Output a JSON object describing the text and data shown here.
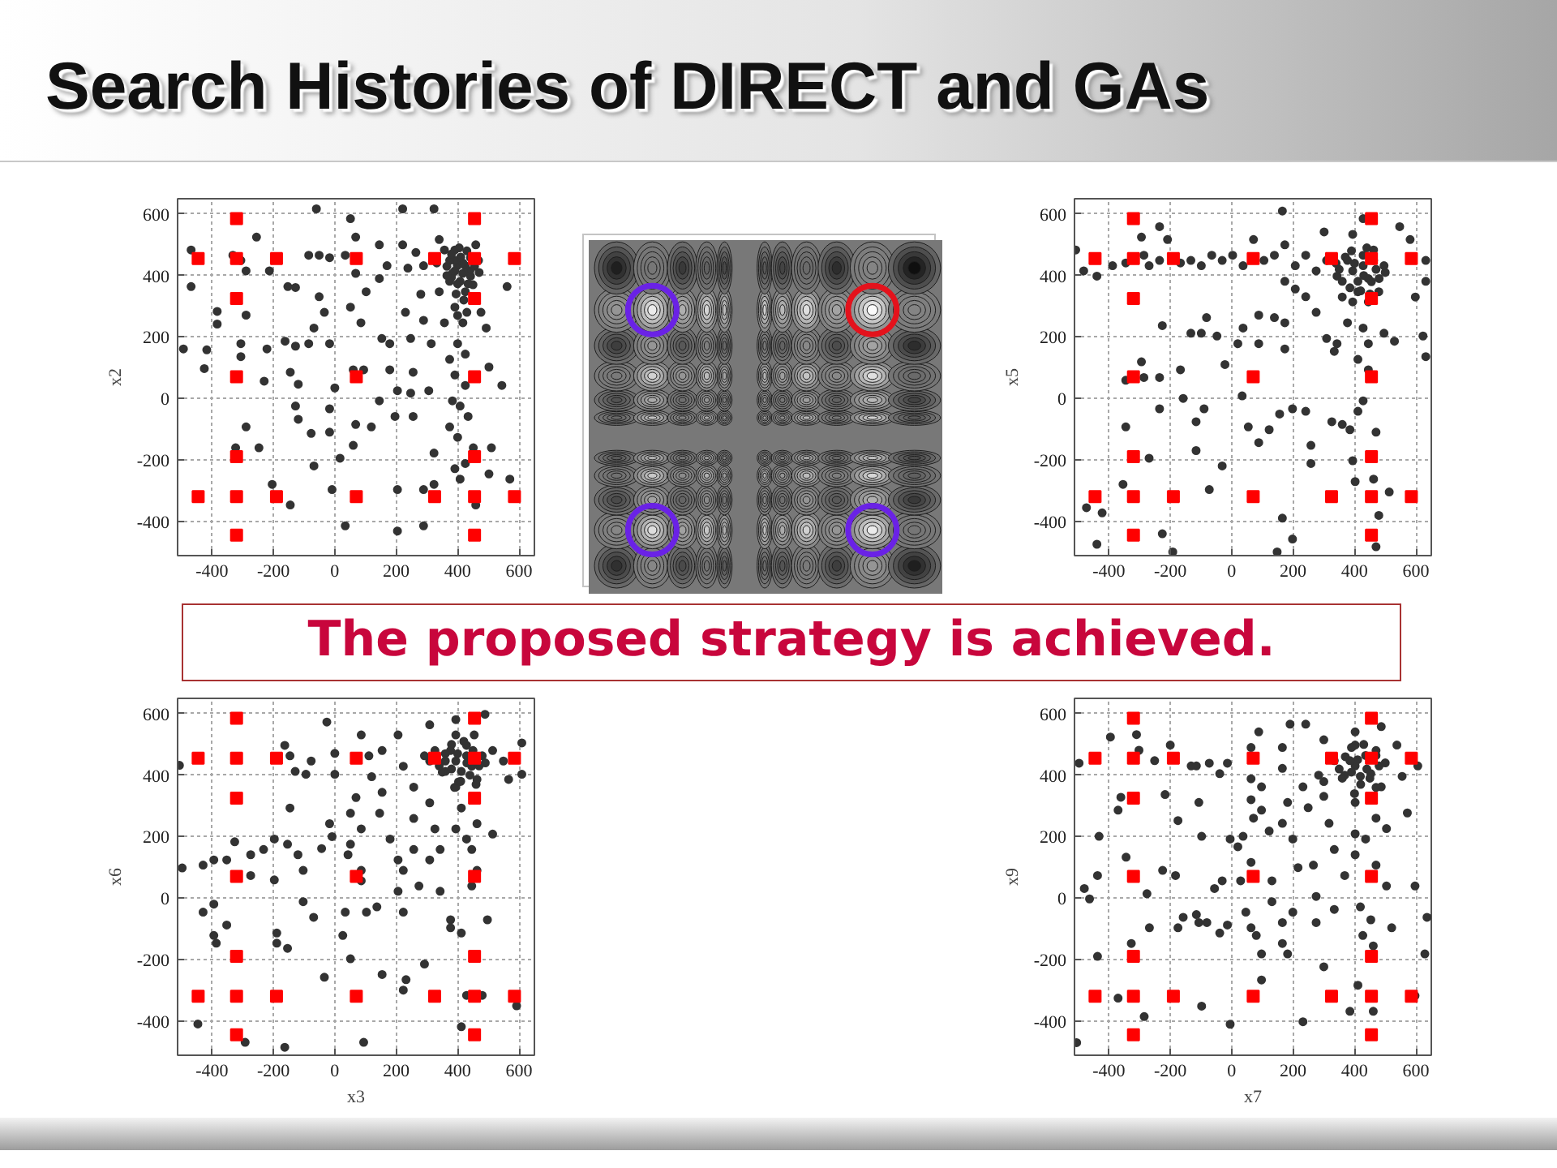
{
  "chart_data": [
    {
      "type": "scatter",
      "title": "Search Histories of DIRECT and GAs",
      "annotations": [
        "The proposed strategy is achieved."
      ],
      "ylabel": "x2",
      "xlim": [
        -512,
        650
      ],
      "ylim": [
        -512,
        650
      ],
      "xticks": [
        -400,
        -200,
        0,
        200,
        400,
        600
      ],
      "yticks": [
        -400,
        -200,
        0,
        200,
        400,
        600
      ],
      "grid": true,
      "series": [
        {
          "color": "#333333",
          "marker": "circle",
          "x": [
            -468,
            -468,
            -493,
            -417,
            -425,
            -383,
            -383,
            -332,
            -306,
            -289,
            -289,
            -306,
            -306,
            -255,
            -213,
            -221,
            -230,
            -289,
            -323,
            -247,
            -204,
            -145,
            -153,
            -128,
            -162,
            -128,
            -145,
            -119,
            -128,
            -119,
            -77,
            -68,
            -60,
            -85,
            -51,
            -17,
            -51,
            -68,
            -34,
            -85,
            -17,
            0,
            -17,
            -17,
            -9,
            17,
            34,
            51,
            68,
            34,
            68,
            51,
            85,
            102,
            60,
            94,
            68,
            60,
            119,
            145,
            145,
            145,
            170,
            153,
            179,
            179,
            204,
            196,
            204,
            204,
            221,
            221,
            238,
            230,
            247,
            255,
            247,
            255,
            289,
            289,
            289,
            264,
            280,
            289,
            323,
            314,
            306,
            323,
            323,
            340,
            340,
            357,
            374,
            374,
            383,
            391,
            408,
            391,
            391,
            425,
            408,
            442,
            374,
            425,
            391,
            417,
            400,
            425,
            391,
            425,
            408,
            434,
            400,
            451,
            459,
            468,
            476,
            493,
            502,
            510,
            502,
            459,
            544,
            561,
            570,
            425,
            357,
            332,
            442,
            399,
            417,
            383,
            434,
            400,
            417,
            391,
            374,
            365,
            380,
            405,
            430,
            455,
            450,
            420,
            395,
            380,
            410,
            440,
            365,
            470,
            400,
            430
          ],
          "values": [
            483,
            364,
            161,
            158,
            97,
            283,
            242,
            466,
            449,
            415,
            271,
            178,
            136,
            525,
            415,
            161,
            56,
            -93,
            -161,
            -161,
            -280,
            -347,
            364,
            361,
            186,
            170,
            85,
            46,
            -25,
            -68,
            -114,
            -220,
            617,
            466,
            466,
            458,
            331,
            229,
            280,
            178,
            178,
            34,
            -34,
            -110,
            -297,
            -195,
            -415,
            585,
            525,
            466,
            407,
            297,
            246,
            347,
            93,
            93,
            -85,
            -153,
            -93,
            -8,
            390,
            500,
            432,
            195,
            178,
            93,
            25,
            -59,
            -297,
            -432,
            500,
            617,
            424,
            280,
            195,
            85,
            17,
            -59,
            -297,
            -415,
            432,
            475,
            339,
            254,
            617,
            178,
            25,
            -178,
            -280,
            517,
            347,
            246,
            127,
            -93,
            -8,
            -229,
            -263,
            483,
            415,
            432,
            381,
            398,
            381,
            347,
            297,
            246,
            178,
            144,
            76,
            42,
            -25,
            -59,
            -127,
            -161,
            500,
            449,
            280,
            229,
            102,
            -161,
            -246,
            -347,
            42,
            364,
            -263,
            -212,
            483,
            441,
            458,
            432,
            441,
            407,
            373,
            373,
            407,
            449,
            449,
            430,
            470,
            490,
            480,
            430,
            370,
            320,
            340,
            395,
            460,
            415,
            400,
            410,
            270,
            280
          ]
        },
        {
          "color": "#ff0000",
          "marker": "square",
          "x": [
            -320,
            455,
            -445,
            -320,
            -190,
            70,
            325,
            455,
            585,
            -320,
            455,
            -320,
            70,
            455,
            -320,
            455,
            -445,
            -320,
            -190,
            70,
            325,
            455,
            585,
            -320,
            455
          ],
          "values": [
            585,
            585,
            455,
            455,
            455,
            455,
            455,
            455,
            455,
            325,
            325,
            70,
            70,
            70,
            -190,
            -190,
            -320,
            -320,
            -320,
            -320,
            -320,
            -320,
            -320,
            -445,
            -445
          ]
        }
      ]
    },
    {
      "type": "scatter",
      "ylabel": "x5",
      "xlim": [
        -512,
        650
      ],
      "ylim": [
        -512,
        650
      ],
      "xticks": [
        -400,
        -200,
        0,
        200,
        400,
        600
      ],
      "yticks": [
        -400,
        -200,
        0,
        200,
        400,
        600
      ],
      "grid": true,
      "series": [
        {
          "color": "#333333",
          "marker": "circle",
          "x": [
            -508,
            -482,
            -439,
            -388,
            -345,
            -294,
            -286,
            -269,
            -235,
            -235,
            -209,
            -167,
            -133,
            -99,
            -65,
            -31,
            3,
            37,
            71,
            105,
            139,
            165,
            173,
            207,
            241,
            275,
            309,
            301,
            394,
            428,
            547,
            581,
            632,
            632,
            598,
            623,
            632,
            530,
            496,
            445,
            411,
            428,
            377,
            343,
            309,
            334,
            275,
            241,
            207,
            173,
            173,
            173,
            139,
            88,
            88,
            37,
            20,
            -22,
            -48,
            -82,
            -99,
            -133,
            -226,
            -167,
            -158,
            -235,
            -235,
            -286,
            -294,
            -345,
            -345,
            -269,
            -354,
            -473,
            -422,
            -439,
            -226,
            -192,
            -73,
            -31,
            -90,
            -116,
            -116,
            34,
            54,
            88,
            122,
            156,
            198,
            241,
            258,
            258,
            165,
            148,
            198,
            326,
            360,
            385,
            411,
            394,
            402,
            462,
            479,
            470,
            513,
            470,
            445,
            428,
            394,
            428,
            411,
            445,
            377,
            462,
            360,
            411,
            479,
            343,
            428,
            496,
            394,
            445,
            462,
            350,
            370,
            390,
            440,
            470,
            455,
            420,
            385,
            400,
            430,
            480,
            340,
            500,
            360,
            450
          ],
          "values": [
            483,
            415,
            398,
            432,
            441,
            525,
            466,
            432,
            559,
            449,
            517,
            441,
            449,
            432,
            466,
            449,
            466,
            432,
            517,
            449,
            466,
            610,
            500,
            432,
            466,
            415,
            449,
            542,
            534,
            585,
            559,
            517,
            449,
            381,
            330,
            203,
            136,
            186,
            212,
            178,
            127,
            229,
            246,
            178,
            195,
            153,
            280,
            331,
            356,
            381,
            246,
            161,
            263,
            271,
            178,
            229,
            178,
            110,
            203,
            263,
            212,
            212,
            237,
            93,
            0,
            68,
            -34,
            68,
            119,
            59,
            -93,
            -195,
            -280,
            -356,
            -373,
            -475,
            -441,
            -500,
            -297,
            -220,
            -34,
            -76,
            -170,
            8,
            -93,
            -144,
            -102,
            -51,
            -34,
            -42,
            -153,
            -212,
            -390,
            -500,
            -458,
            -76,
            -85,
            -102,
            -42,
            -203,
            -271,
            -263,
            -381,
            -483,
            -305,
            -110,
            93,
            -8,
            415,
            432,
            381,
            390,
            449,
            449,
            381,
            347,
            347,
            398,
            466,
            432,
            314,
            314,
            483,
            420,
            460,
            480,
            490,
            420,
            380,
            350,
            360,
            440,
            400,
            390,
            440,
            410,
            330,
            340
          ]
        },
        {
          "color": "#ff0000",
          "marker": "square",
          "x": [
            -320,
            455,
            -445,
            -320,
            -190,
            70,
            325,
            455,
            585,
            -320,
            455,
            -320,
            70,
            455,
            -320,
            455,
            -445,
            -320,
            -190,
            70,
            325,
            455,
            585,
            -320,
            455
          ],
          "values": [
            585,
            585,
            455,
            455,
            455,
            455,
            455,
            455,
            455,
            325,
            325,
            70,
            70,
            70,
            -190,
            -190,
            -320,
            -320,
            -320,
            -320,
            -320,
            -320,
            -320,
            -445,
            -445
          ]
        }
      ]
    },
    {
      "type": "scatter",
      "xlabel": "x3",
      "ylabel": "x6",
      "xlim": [
        -512,
        650
      ],
      "ylim": [
        -512,
        650
      ],
      "xticks": [
        -400,
        -200,
        0,
        200,
        400,
        600
      ],
      "yticks": [
        -400,
        -200,
        0,
        200,
        400,
        600
      ],
      "grid": true,
      "series": [
        {
          "color": "#333333",
          "marker": "circle",
          "x": [
            -506,
            -497,
            -429,
            -394,
            -352,
            -326,
            -274,
            -274,
            -429,
            -394,
            -394,
            -386,
            -352,
            -446,
            -292,
            -163,
            -232,
            -197,
            -197,
            -154,
            -146,
            -189,
            -189,
            -154,
            -120,
            -103,
            -103,
            -69,
            -34,
            -43,
            -17,
            -9,
            -129,
            -146,
            -163,
            -94,
            -77,
            -26,
            0,
            0,
            34,
            26,
            51,
            94,
            51,
            69,
            86,
            51,
            43,
            86,
            86,
            103,
            137,
            154,
            120,
            111,
            86,
            154,
            154,
            146,
            180,
            206,
            223,
            206,
            223,
            232,
            223,
            206,
            223,
            257,
            257,
            257,
            274,
            292,
            309,
            309,
            309,
            326,
            309,
            343,
            343,
            377,
            377,
            412,
            412,
            429,
            394,
            394,
            360,
            394,
            412,
            394,
            429,
            463,
            446,
            463,
            446,
            497,
            514,
            514,
            549,
            566,
            609,
            609,
            592,
            480,
            454,
            489,
            394,
            429,
            412,
            446,
            377,
            360,
            463,
            403,
            429,
            480,
            326,
            292,
            340,
            360,
            380,
            420,
            450,
            470,
            440,
            410,
            380,
            400,
            430,
            350,
            490,
            460,
            390
          ],
          "values": [
            432,
            98,
            107,
            124,
            124,
            183,
            141,
            73,
            -46,
            -20,
            -122,
            -147,
            -88,
            -410,
            -470,
            -486,
            158,
            192,
            59,
            175,
            293,
            -147,
            -114,
            -164,
            141,
            90,
            -12,
            -63,
            -258,
            161,
            242,
            200,
            412,
            463,
            497,
            403,
            446,
            573,
            471,
            403,
            -46,
            -122,
            -198,
            -470,
            276,
            327,
            225,
            175,
            141,
            90,
            56,
            -46,
            -29,
            -249,
            395,
            463,
            531,
            480,
            344,
            276,
            192,
            124,
            90,
            22,
            -46,
            -266,
            -300,
            531,
            429,
            361,
            259,
            158,
            39,
            -215,
            564,
            446,
            310,
            225,
            124,
            158,
            22,
            -71,
            -97,
            -114,
            -419,
            -317,
            581,
            531,
            412,
            361,
            293,
            225,
            192,
            242,
            158,
            90,
            39,
            -71,
            208,
            480,
            446,
            386,
            505,
            403,
            -351,
            -317,
            531,
            598,
            446,
            463,
            412,
            429,
            480,
            446,
            386,
            378,
            497,
            463,
            480,
            463,
            430,
            470,
            500,
            510,
            480,
            430,
            400,
            380,
            420,
            470,
            440,
            410,
            440,
            370,
            360
          ]
        },
        {
          "color": "#ff0000",
          "marker": "square",
          "x": [
            -320,
            455,
            -445,
            -320,
            -190,
            70,
            325,
            455,
            585,
            -320,
            455,
            -320,
            70,
            455,
            -320,
            455,
            -445,
            -320,
            -190,
            70,
            325,
            455,
            585,
            -320,
            455
          ],
          "values": [
            585,
            585,
            455,
            455,
            455,
            455,
            455,
            455,
            455,
            325,
            325,
            70,
            70,
            70,
            -190,
            -190,
            -320,
            -320,
            -320,
            -320,
            -320,
            -320,
            -320,
            -445,
            -445
          ]
        }
      ]
    },
    {
      "type": "scatter",
      "xlabel": "x7",
      "ylabel": "x9",
      "xlim": [
        -512,
        650
      ],
      "ylim": [
        -512,
        650
      ],
      "xticks": [
        -400,
        -200,
        0,
        200,
        400,
        600
      ],
      "yticks": [
        -400,
        -200,
        0,
        200,
        400,
        600
      ],
      "grid": true,
      "series": [
        {
          "color": "#333333",
          "marker": "circle",
          "x": [
            -505,
            -497,
            -480,
            -463,
            -437,
            -432,
            -437,
            -395,
            -370,
            -361,
            -344,
            -370,
            -327,
            -310,
            -302,
            -285,
            -276,
            -268,
            -225,
            -217,
            -251,
            -200,
            -183,
            -175,
            -175,
            -158,
            -132,
            -115,
            -115,
            -107,
            -107,
            -98,
            -98,
            -81,
            -73,
            -39,
            -56,
            -31,
            -39,
            -14,
            -5,
            -14,
            -5,
            20,
            37,
            29,
            46,
            63,
            80,
            97,
            97,
            88,
            63,
            63,
            97,
            63,
            71,
            97,
            63,
            122,
            131,
            131,
            165,
            165,
            182,
            199,
            190,
            165,
            165,
            182,
            165,
            199,
            216,
            241,
            232,
            249,
            266,
            275,
            275,
            300,
            232,
            300,
            300,
            317,
            334,
            334,
            368,
            385,
            411,
            402,
            402,
            402,
            402,
            419,
            427,
            453,
            436,
            470,
            470,
            504,
            504,
            521,
            461,
            461,
            487,
            538,
            555,
            572,
            606,
            597,
            636,
            629,
            597,
            402,
            436,
            419,
            385,
            453,
            368,
            470,
            402,
            334,
            487,
            283,
            300,
            350,
            370,
            390,
            430,
            470,
            480,
            450,
            420,
            390,
            410,
            440,
            360,
            500,
            470,
            400
          ],
          "values": [
            -471,
            439,
            31,
            -3,
            73,
            201,
            -190,
            524,
            286,
            328,
            133,
            -326,
            -148,
            532,
            481,
            -386,
            14,
            -97,
            90,
            337,
            447,
            498,
            73,
            -97,
            252,
            -63,
            430,
            430,
            -54,
            -80,
            311,
            201,
            -352,
            -80,
            439,
            405,
            31,
            56,
            -114,
            -88,
            -411,
            439,
            192,
            167,
            201,
            56,
            -46,
            -97,
            -122,
            -182,
            -267,
            541,
            490,
            388,
            362,
            320,
            260,
            286,
            116,
            218,
            56,
            -12,
            -80,
            -148,
            -182,
            -46,
            566,
            490,
            422,
            311,
            243,
            192,
            99,
            566,
            362,
            294,
            107,
            5,
            -80,
            -224,
            -403,
            515,
            379,
            243,
            158,
            -37,
            73,
            -369,
            -284,
            541,
            311,
            209,
            141,
            -29,
            -122,
            -71,
            192,
            260,
            107,
            39,
            226,
            -97,
            -156,
            -369,
            558,
            498,
            396,
            277,
            430,
            39,
            -63,
            -182,
            -318,
            430,
            464,
            396,
            447,
            405,
            400,
            464,
            498,
            447,
            362,
            400,
            331,
            420,
            460,
            490,
            500,
            480,
            430,
            390,
            370,
            410,
            450,
            420,
            390,
            440,
            360,
            340
          ]
        },
        {
          "color": "#ff0000",
          "marker": "square",
          "x": [
            -320,
            455,
            -445,
            -320,
            -190,
            70,
            325,
            455,
            585,
            -320,
            455,
            -320,
            70,
            455,
            -320,
            455,
            -445,
            -320,
            -190,
            70,
            325,
            455,
            585,
            -320,
            455
          ],
          "values": [
            585,
            585,
            455,
            455,
            455,
            455,
            455,
            455,
            455,
            325,
            325,
            70,
            70,
            70,
            -190,
            -190,
            -320,
            -320,
            -320,
            -320,
            -320,
            -320,
            -320,
            -445,
            -445
          ]
        }
      ]
    }
  ]
}
